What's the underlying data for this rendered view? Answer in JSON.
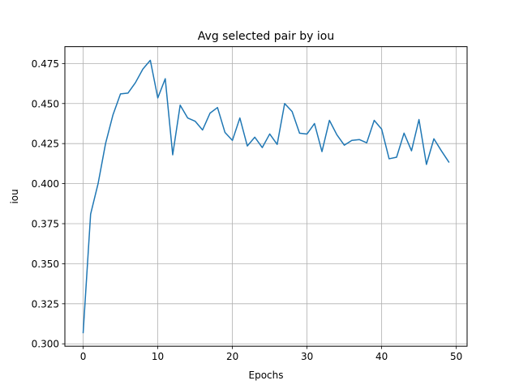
{
  "chart_data": {
    "type": "line",
    "title": "Avg selected pair by iou",
    "xlabel": "Epochs",
    "ylabel": "iou",
    "grid": true,
    "xlim": [
      -2.45,
      51.45
    ],
    "ylim": [
      0.2985,
      0.4855
    ],
    "xticks": [
      0,
      10,
      20,
      30,
      40,
      50
    ],
    "yticks": [
      0.3,
      0.325,
      0.35,
      0.375,
      0.4,
      0.425,
      0.45,
      0.475
    ],
    "ytick_labels": [
      "0.300",
      "0.325",
      "0.350",
      "0.375",
      "0.400",
      "0.425",
      "0.450",
      "0.475"
    ],
    "series": [
      {
        "color": "#1f77b4",
        "x": [
          0,
          1,
          2,
          3,
          4,
          5,
          6,
          7,
          8,
          9,
          10,
          11,
          12,
          13,
          14,
          15,
          16,
          17,
          18,
          19,
          20,
          21,
          22,
          23,
          24,
          25,
          26,
          27,
          28,
          29,
          30,
          31,
          32,
          33,
          34,
          35,
          36,
          37,
          38,
          39,
          40,
          41,
          42,
          43,
          44,
          45,
          46,
          47,
          48,
          49
        ],
        "y": [
          0.307,
          0.381,
          0.4,
          0.425,
          0.443,
          0.456,
          0.4565,
          0.463,
          0.4715,
          0.477,
          0.4535,
          0.4655,
          0.418,
          0.449,
          0.441,
          0.439,
          0.4335,
          0.444,
          0.4475,
          0.432,
          0.427,
          0.441,
          0.4235,
          0.429,
          0.4225,
          0.431,
          0.4245,
          0.45,
          0.445,
          0.4315,
          0.431,
          0.4375,
          0.42,
          0.4395,
          0.4305,
          0.424,
          0.427,
          0.4275,
          0.4255,
          0.4395,
          0.434,
          0.4155,
          0.4165,
          0.4315,
          0.4205,
          0.44,
          0.412,
          0.428,
          0.4205,
          0.4135
        ]
      }
    ]
  }
}
